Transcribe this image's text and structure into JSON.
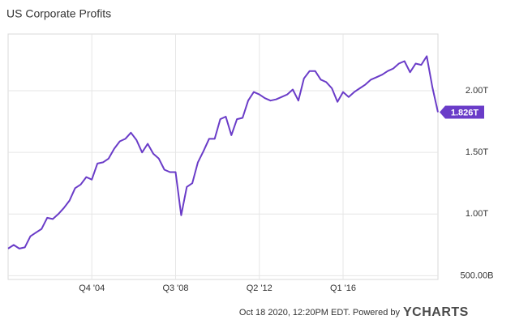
{
  "chart_data": {
    "type": "line",
    "title": "US Corporate Profits",
    "categories": [
      null,
      null,
      null,
      null,
      null,
      null,
      null,
      null,
      null,
      null,
      null,
      null,
      null,
      null,
      null,
      "Q4 '04",
      null,
      null,
      null,
      null,
      null,
      null,
      null,
      null,
      null,
      null,
      null,
      null,
      null,
      null,
      "Q3 '08",
      null,
      null,
      null,
      null,
      null,
      null,
      null,
      null,
      null,
      null,
      null,
      null,
      null,
      null,
      "Q2 '12",
      null,
      null,
      null,
      null,
      null,
      null,
      null,
      null,
      null,
      null,
      null,
      null,
      null,
      null,
      "Q1 '16",
      null,
      null,
      null,
      null,
      null,
      null,
      null,
      null,
      null,
      null,
      null,
      null,
      null,
      null,
      null,
      null,
      null
    ],
    "series": [
      {
        "name": "US Corporate Profits",
        "color": "#6a3cc8",
        "values": [
          0.72,
          0.75,
          0.72,
          0.73,
          0.82,
          0.85,
          0.88,
          0.97,
          0.96,
          1.0,
          1.05,
          1.11,
          1.21,
          1.24,
          1.3,
          1.28,
          1.41,
          1.42,
          1.45,
          1.53,
          1.59,
          1.61,
          1.66,
          1.6,
          1.5,
          1.57,
          1.49,
          1.45,
          1.36,
          1.34,
          1.34,
          0.99,
          1.22,
          1.25,
          1.42,
          1.51,
          1.61,
          1.61,
          1.77,
          1.79,
          1.64,
          1.77,
          1.78,
          1.92,
          1.99,
          1.97,
          1.94,
          1.92,
          1.93,
          1.95,
          1.97,
          2.01,
          1.92,
          2.1,
          2.16,
          2.16,
          2.09,
          2.07,
          2.02,
          1.91,
          1.99,
          1.95,
          1.99,
          2.02,
          2.05,
          2.09,
          2.11,
          2.13,
          2.16,
          2.18,
          2.22,
          2.24,
          2.15,
          2.22,
          2.21,
          2.28,
          2.03,
          1.826
        ],
        "value_labels": [
          null,
          null,
          null,
          null,
          null,
          null,
          null,
          null,
          null,
          null,
          null,
          null,
          null,
          null,
          null,
          null,
          null,
          null,
          null,
          null,
          null,
          null,
          null,
          null,
          null,
          null,
          null,
          null,
          null,
          null,
          null,
          null,
          null,
          null,
          null,
          null,
          null,
          null,
          null,
          null,
          null,
          null,
          null,
          null,
          null,
          null,
          null,
          null,
          null,
          null,
          null,
          null,
          null,
          null,
          null,
          null,
          null,
          null,
          null,
          null,
          null,
          null,
          null,
          null,
          null,
          null,
          null,
          null,
          null,
          null,
          null,
          null,
          null,
          null,
          null,
          null,
          null,
          "1.826T"
        ]
      }
    ],
    "ylim": [
      0.47,
      2.46
    ],
    "yticks": [
      {
        "value": 0.5,
        "label": "500.00B"
      },
      {
        "value": 1.0,
        "label": "1.00T"
      },
      {
        "value": 1.5,
        "label": "1.50T"
      },
      {
        "value": 2.0,
        "label": "2.00T"
      }
    ],
    "grid": true,
    "footer": "Oct 18 2020, 12:20PM EDT.  Powered by",
    "brand": "YCHARTS"
  }
}
